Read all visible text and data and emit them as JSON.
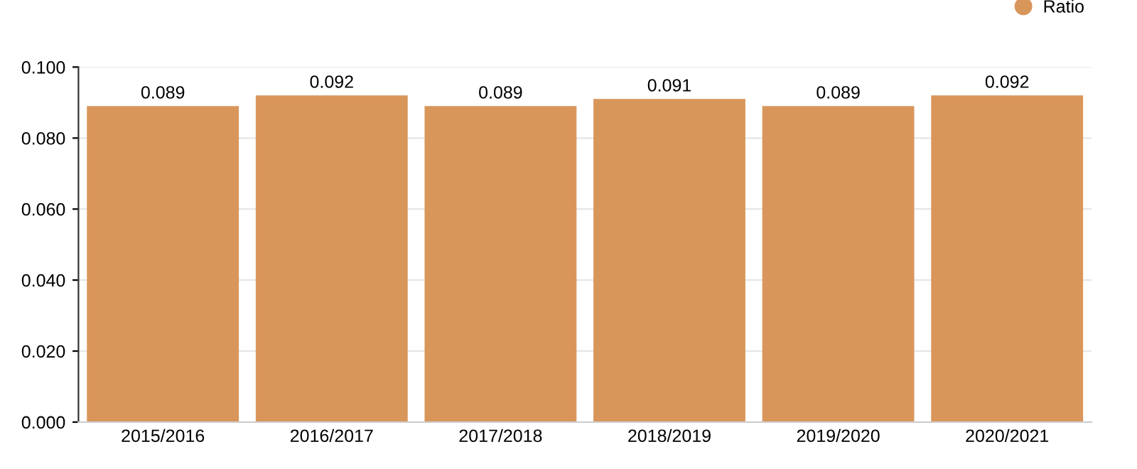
{
  "chart_data": {
    "type": "bar",
    "categories": [
      "2015/2016",
      "2016/2017",
      "2017/2018",
      "2018/2019",
      "2019/2020",
      "2020/2021"
    ],
    "series": [
      {
        "name": "Ratio",
        "color": "#d9965b",
        "values": [
          0.089,
          0.092,
          0.089,
          0.091,
          0.089,
          0.092
        ]
      }
    ],
    "ylim": [
      0,
      0.1
    ],
    "yticks": [
      {
        "value": 0,
        "label": "0.000"
      },
      {
        "value": 0.02,
        "label": "0.020"
      },
      {
        "value": 0.04,
        "label": "0.040"
      },
      {
        "value": 0.06,
        "label": "0.060"
      },
      {
        "value": 0.08,
        "label": "0.080"
      },
      {
        "value": 0.1,
        "label": "0.100"
      }
    ],
    "grid": "y",
    "legend": "top right",
    "data_labels": true
  }
}
